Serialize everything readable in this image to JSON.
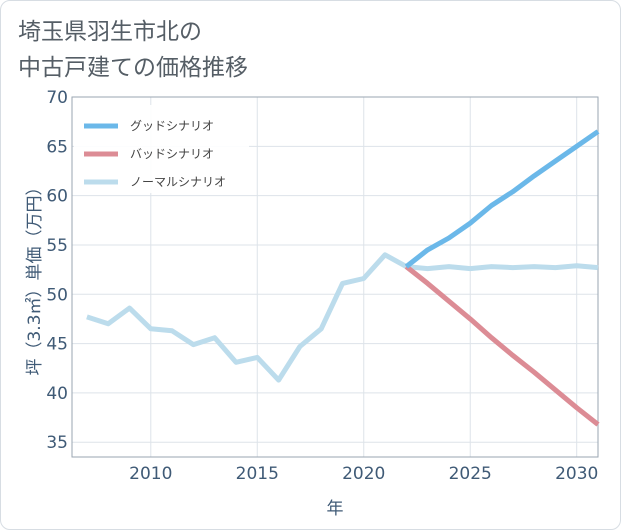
{
  "title_lines": [
    "埼玉県羽生市北の",
    "中古戸建ての価格推移"
  ],
  "chart_data": {
    "type": "line",
    "xlabel": "年",
    "ylabel": "坪（3.3㎡）単価（万円）",
    "xlim": [
      2006.3,
      2031
    ],
    "ylim": [
      33.5,
      70
    ],
    "x_ticks": [
      2010,
      2015,
      2020,
      2025,
      2030
    ],
    "y_ticks": [
      35,
      40,
      45,
      50,
      55,
      60,
      65,
      70
    ],
    "grid": true,
    "legend_position": "top-left",
    "series": [
      {
        "name": "グッドシナリオ",
        "color": "#6bb8e9",
        "x": [
          2022,
          2023,
          2024,
          2025,
          2026,
          2027,
          2028,
          2029,
          2030,
          2031
        ],
        "y": [
          52.8,
          54.5,
          55.7,
          57.2,
          59.0,
          60.4,
          62.0,
          63.5,
          65.0,
          66.5
        ]
      },
      {
        "name": "バッドシナリオ",
        "color": "#dc8c95",
        "x": [
          2022,
          2023,
          2024,
          2025,
          2026,
          2027,
          2028,
          2029,
          2030,
          2031
        ],
        "y": [
          52.8,
          51.1,
          49.3,
          47.5,
          45.6,
          43.8,
          42.1,
          40.3,
          38.5,
          36.8
        ]
      },
      {
        "name": "ノーマルシナリオ",
        "color": "#bcdcec",
        "x": [
          2007,
          2008,
          2009,
          2010,
          2011,
          2012,
          2013,
          2014,
          2015,
          2016,
          2017,
          2018,
          2019,
          2020,
          2021,
          2022,
          2023,
          2024,
          2025,
          2026,
          2027,
          2028,
          2029,
          2030,
          2031
        ],
        "y": [
          47.7,
          47.0,
          48.6,
          46.5,
          46.3,
          44.9,
          45.6,
          43.1,
          43.6,
          41.3,
          44.7,
          46.5,
          51.1,
          51.6,
          54.0,
          52.8,
          52.6,
          52.8,
          52.6,
          52.8,
          52.7,
          52.8,
          52.7,
          52.9,
          52.7
        ]
      }
    ]
  }
}
